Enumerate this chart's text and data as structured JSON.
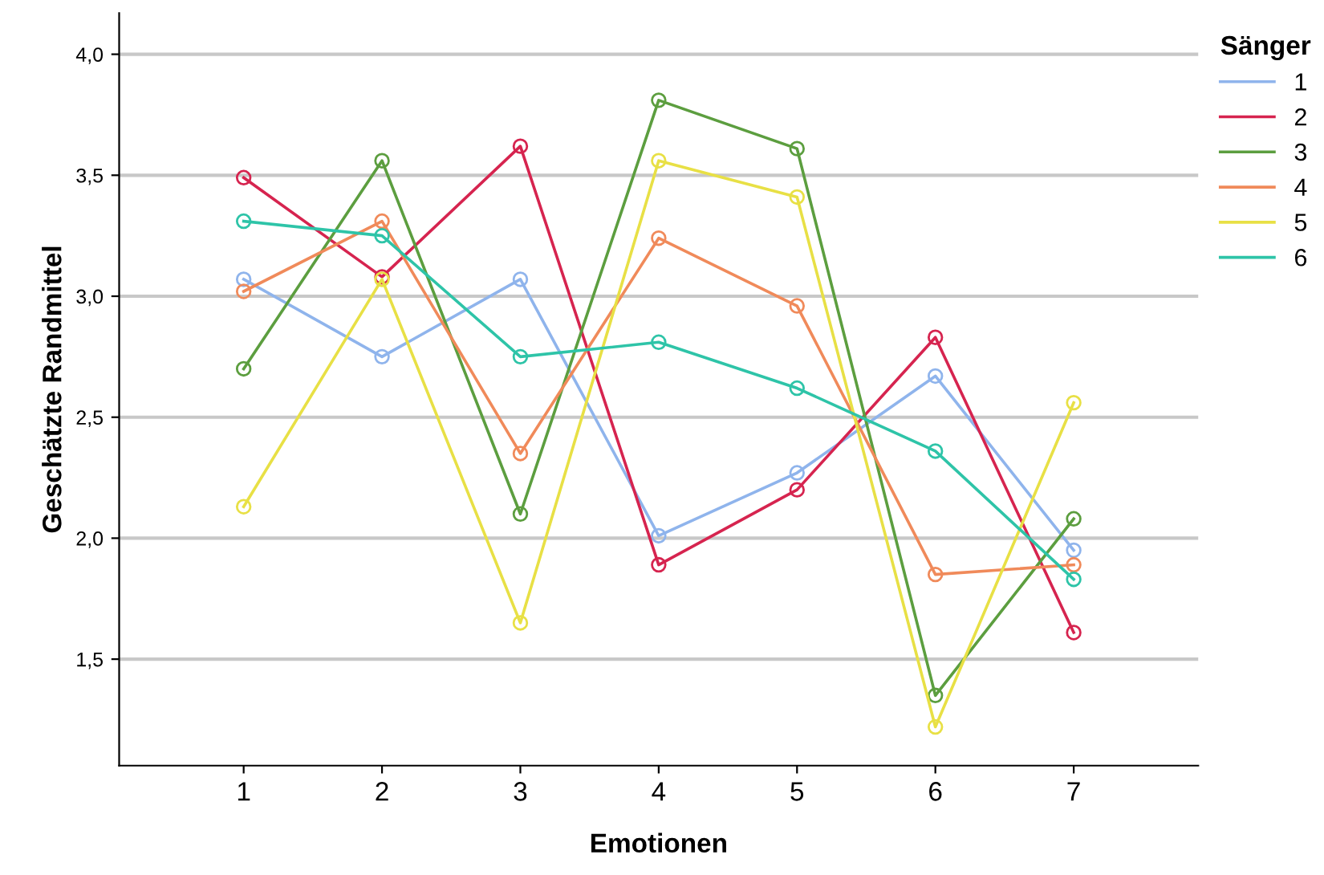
{
  "chart_data": {
    "type": "line",
    "xlabel": "Emotionen",
    "ylabel": "Geschätzte Randmittel",
    "legend_title": "Sänger",
    "categories": [
      "1",
      "2",
      "3",
      "4",
      "5",
      "6",
      "7"
    ],
    "series": [
      {
        "name": "1",
        "color": "#8fb4ec",
        "values": [
          3.07,
          2.75,
          3.07,
          2.01,
          2.27,
          2.67,
          1.95
        ]
      },
      {
        "name": "2",
        "color": "#d6244f",
        "values": [
          3.49,
          3.08,
          3.62,
          1.89,
          2.2,
          2.83,
          1.61
        ]
      },
      {
        "name": "3",
        "color": "#5c9e3f",
        "values": [
          2.7,
          3.56,
          2.1,
          3.81,
          3.61,
          1.35,
          2.08
        ]
      },
      {
        "name": "4",
        "color": "#f08a5a",
        "values": [
          3.02,
          3.31,
          2.35,
          3.24,
          2.96,
          1.85,
          1.89
        ]
      },
      {
        "name": "5",
        "color": "#e8e045",
        "values": [
          2.13,
          3.07,
          1.65,
          3.56,
          3.41,
          1.22,
          2.56
        ]
      },
      {
        "name": "6",
        "color": "#2ec4a8",
        "values": [
          3.31,
          3.25,
          2.75,
          2.81,
          2.62,
          2.36,
          1.83
        ]
      }
    ],
    "ylim": [
      1.06,
      4.17
    ],
    "yticks": [
      {
        "value": 1.5,
        "label": "1,5"
      },
      {
        "value": 2.0,
        "label": "2,0"
      },
      {
        "value": 2.5,
        "label": "2,5"
      },
      {
        "value": 3.0,
        "label": "3,0"
      },
      {
        "value": 3.5,
        "label": "3,5"
      },
      {
        "value": 4.0,
        "label": "4,0"
      }
    ],
    "grid": "y",
    "legend": "right",
    "marker": "circle",
    "line_style": "solid"
  }
}
